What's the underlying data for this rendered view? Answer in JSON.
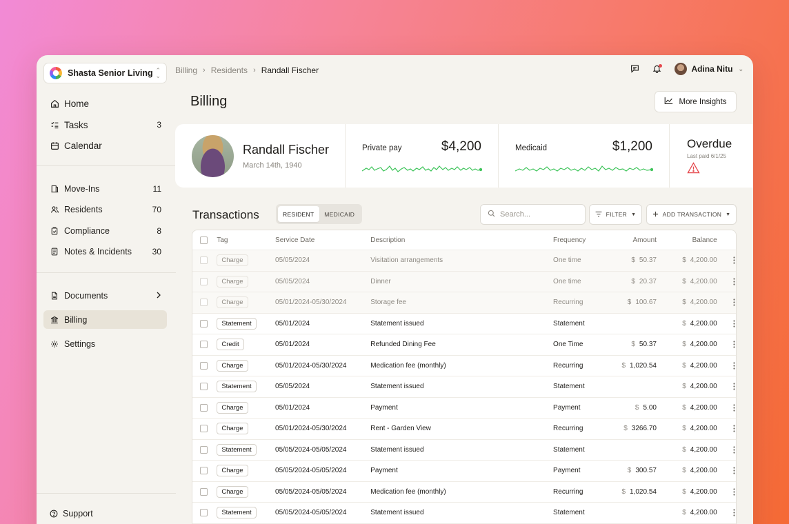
{
  "org": {
    "name": "Shasta Senior Living"
  },
  "nav_primary": [
    {
      "label": "Home",
      "icon": "home-icon",
      "count": ""
    },
    {
      "label": "Tasks",
      "icon": "tasks-icon",
      "count": "3"
    },
    {
      "label": "Calendar",
      "icon": "calendar-icon",
      "count": ""
    }
  ],
  "nav_secondary": [
    {
      "label": "Move-Ins",
      "icon": "move-ins-icon",
      "count": "11"
    },
    {
      "label": "Residents",
      "icon": "residents-icon",
      "count": "70"
    },
    {
      "label": "Compliance",
      "icon": "compliance-icon",
      "count": "8"
    },
    {
      "label": "Notes & Incidents",
      "icon": "notes-icon",
      "count": "30"
    }
  ],
  "nav_tertiary": [
    {
      "label": "Documents",
      "icon": "documents-icon"
    },
    {
      "label": "Billing",
      "icon": "bank-icon",
      "active": true
    },
    {
      "label": "Settings",
      "icon": "gear-icon"
    }
  ],
  "support": {
    "label": "Support"
  },
  "breadcrumbs": [
    "Billing",
    "Residents",
    "Randall Fischer"
  ],
  "user": {
    "name": "Adina Nitu"
  },
  "page": {
    "title": "Billing",
    "insights_label": "More Insights"
  },
  "resident": {
    "name": "Randall Fischer",
    "dob": "March 14th, 1940"
  },
  "payments": [
    {
      "label": "Private pay",
      "value": "$4,200",
      "color": "#3ec45a"
    },
    {
      "label": "Medicaid",
      "value": "$1,200",
      "color": "#3ec45a"
    }
  ],
  "status": {
    "label": "Overdue",
    "last_paid": "Last paid 6/1/25",
    "warn_color": "#e5484d"
  },
  "transactions": {
    "title": "Transactions",
    "tabs": [
      "RESIDENT",
      "MEDICAID"
    ],
    "active_tab": 0,
    "search_placeholder": "Search...",
    "filter_label": "FILTER",
    "add_label": "ADD TRANSACTION",
    "columns": [
      "Tag",
      "Service Date",
      "Description",
      "Frequency",
      "Amount",
      "Balance"
    ],
    "rows": [
      {
        "tag": "Charge",
        "date": "05/05/2024",
        "desc": "Visitation arrangements",
        "freq": "One time",
        "amount": "50.37",
        "balance": "4,200.00",
        "dim": true
      },
      {
        "tag": "Charge",
        "date": "05/05/2024",
        "desc": "Dinner",
        "freq": "One time",
        "amount": "20.37",
        "balance": "4,200.00",
        "dim": true
      },
      {
        "tag": "Charge",
        "date": "05/01/2024-05/30/2024",
        "desc": "Storage fee",
        "freq": "Recurring",
        "amount": "100.67",
        "balance": "4,200.00",
        "dim": true
      },
      {
        "tag": "Statement",
        "date": "05/01/2024",
        "desc": "Statement issued",
        "freq": "Statement",
        "amount": "",
        "balance": "4,200.00"
      },
      {
        "tag": "Credit",
        "date": "05/01/2024",
        "desc": "Refunded Dining Fee",
        "freq": "One Time",
        "amount": "50.37",
        "balance": "4,200.00"
      },
      {
        "tag": "Charge",
        "date": "05/01/2024-05/30/2024",
        "desc": "Medication fee (monthly)",
        "freq": "Recurring",
        "amount": "1,020.54",
        "balance": "4,200.00"
      },
      {
        "tag": "Statement",
        "date": "05/05/2024",
        "desc": "Statement issued",
        "freq": "Statement",
        "amount": "",
        "balance": "4,200.00"
      },
      {
        "tag": "Charge",
        "date": "05/01/2024",
        "desc": "Payment",
        "freq": "Payment",
        "amount": "5.00",
        "balance": "4,200.00"
      },
      {
        "tag": "Charge",
        "date": "05/01/2024-05/30/2024",
        "desc": "Rent - Garden View",
        "freq": "Recurring",
        "amount": "3266.70",
        "balance": "4,200.00"
      },
      {
        "tag": "Statement",
        "date": "05/05/2024-05/05/2024",
        "desc": "Statement issued",
        "freq": "Statement",
        "amount": "",
        "balance": "4,200.00"
      },
      {
        "tag": "Charge",
        "date": "05/05/2024-05/05/2024",
        "desc": "Payment",
        "freq": "Payment",
        "amount": "300.57",
        "balance": "4,200.00"
      },
      {
        "tag": "Charge",
        "date": "05/05/2024-05/05/2024",
        "desc": "Medication fee (monthly)",
        "freq": "Recurring",
        "amount": "1,020.54",
        "balance": "4,200.00"
      },
      {
        "tag": "Statement",
        "date": "05/05/2024-05/05/2024",
        "desc": "Statement issued",
        "freq": "Statement",
        "amount": "",
        "balance": "4,200.00"
      }
    ]
  }
}
